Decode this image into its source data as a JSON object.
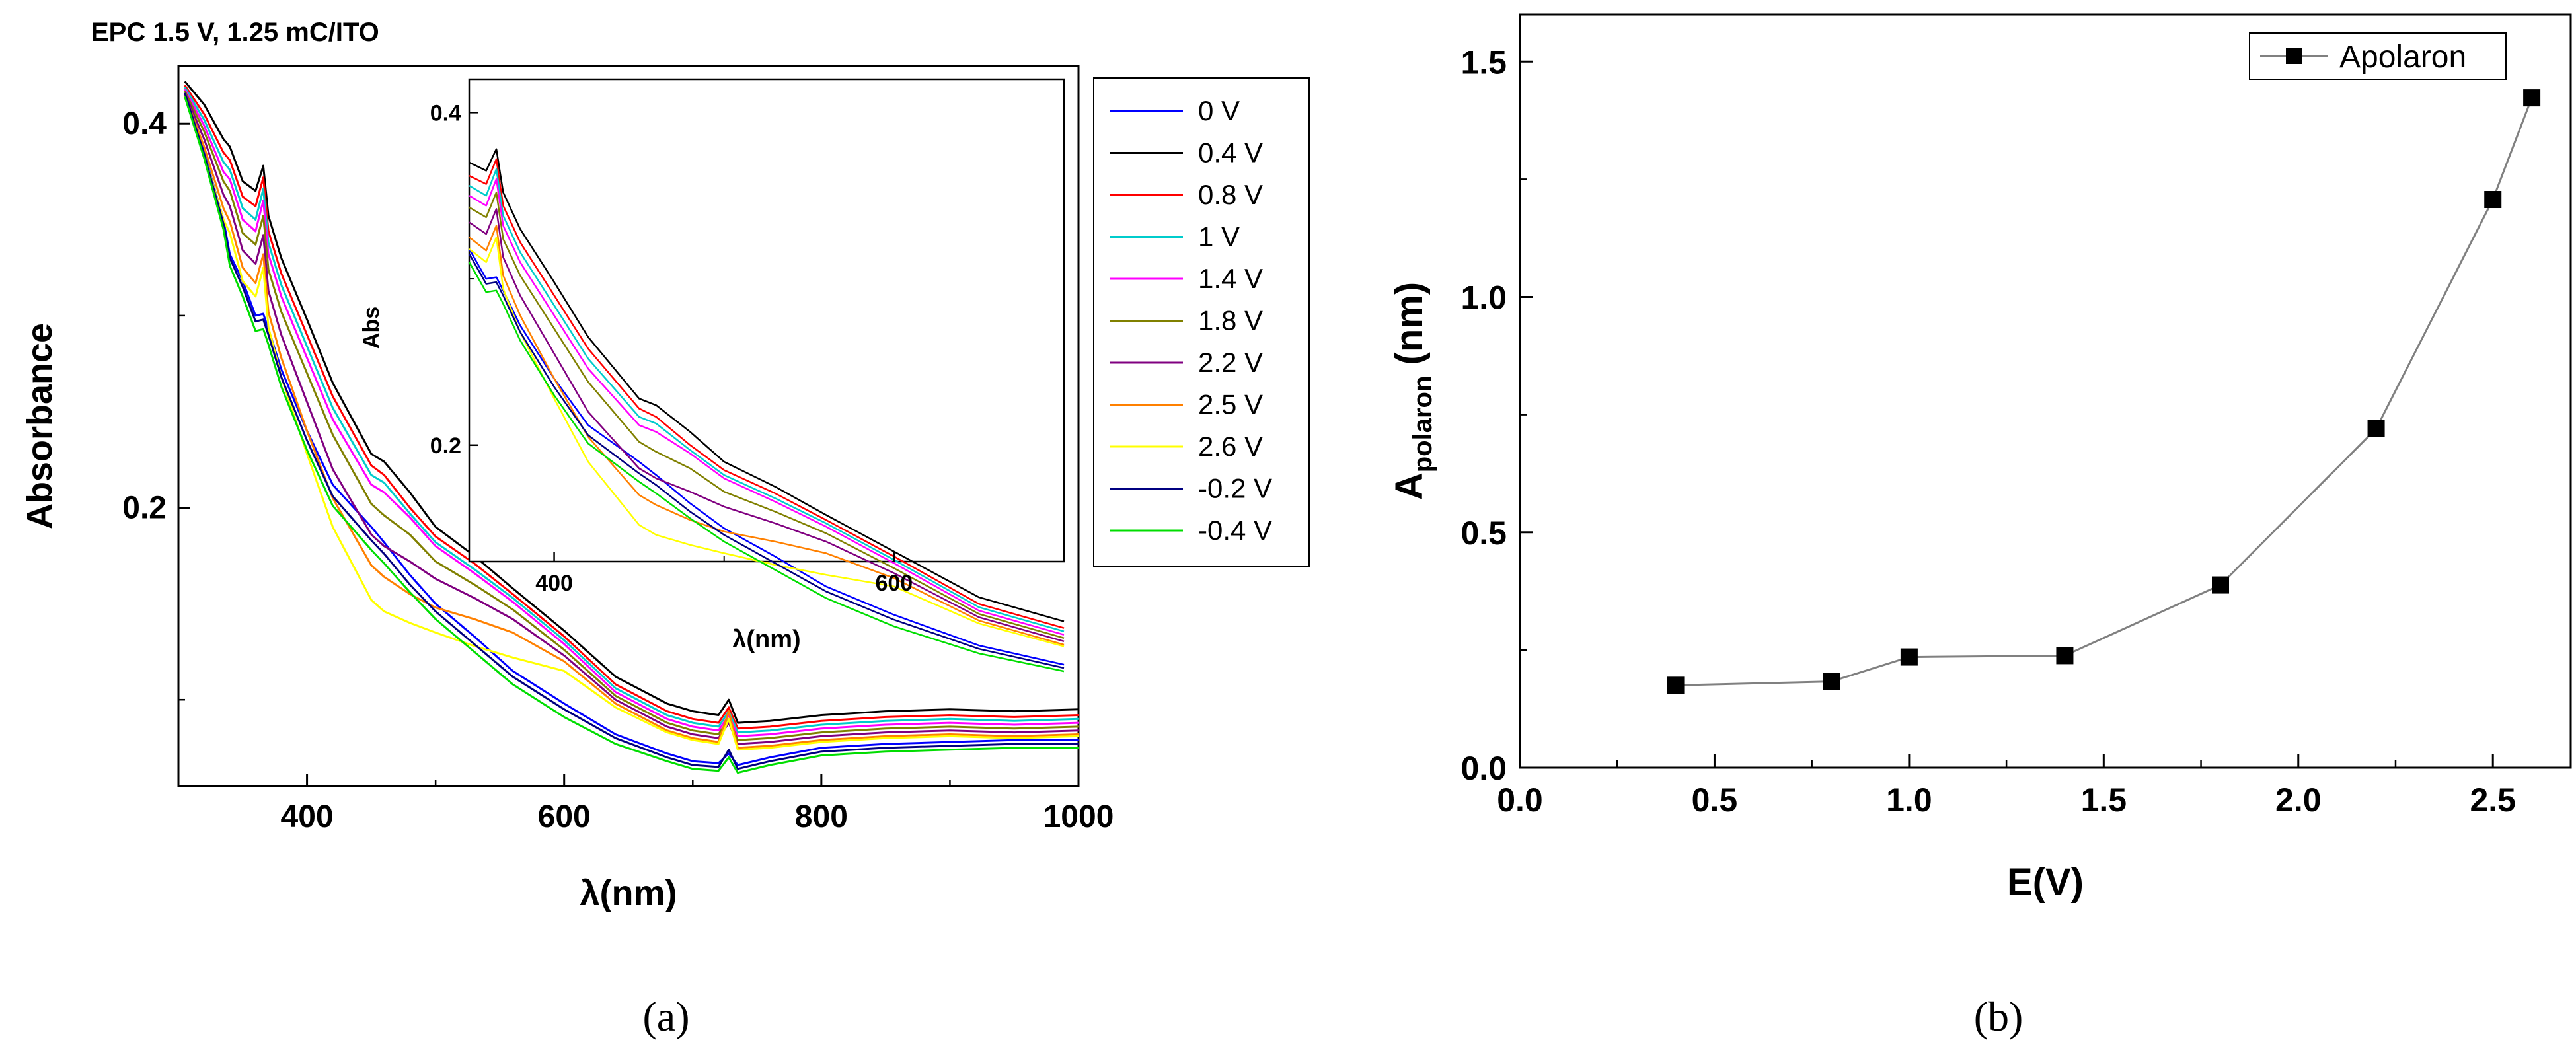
{
  "panel_a": {
    "title": "EPC 1.5 V, 1.25 mC/ITO",
    "caption": "(a)"
  },
  "panel_b": {
    "caption": "(b)"
  },
  "chart_data": [
    {
      "id": "a-main",
      "type": "line",
      "title": "EPC 1.5 V, 1.25 mC/ITO",
      "xlabel": "λ(nm)",
      "ylabel": "Absorbance",
      "xlim": [
        300,
        1000
      ],
      "ylim": [
        0.055,
        0.43
      ],
      "xticks": [
        400,
        600,
        800,
        1000
      ],
      "yticks": [
        0.2,
        0.4
      ],
      "grid": false,
      "legend": "outside-right",
      "x": [
        305,
        320,
        335,
        340,
        350,
        360,
        366,
        370,
        380,
        400,
        420,
        450,
        460,
        480,
        500,
        530,
        560,
        600,
        640,
        680,
        700,
        720,
        728,
        735,
        760,
        800,
        850,
        900,
        950,
        1000
      ],
      "series": [
        {
          "name": "0 V",
          "color": "#0000ff",
          "values": [
            0.415,
            0.385,
            0.35,
            0.332,
            0.318,
            0.3,
            0.301,
            0.293,
            0.272,
            0.24,
            0.212,
            0.19,
            0.182,
            0.165,
            0.15,
            0.133,
            0.115,
            0.098,
            0.082,
            0.072,
            0.068,
            0.067,
            0.072,
            0.066,
            0.07,
            0.075,
            0.077,
            0.078,
            0.079,
            0.079
          ]
        },
        {
          "name": "0.4 V",
          "color": "#000000",
          "values": [
            0.422,
            0.41,
            0.392,
            0.388,
            0.37,
            0.365,
            0.378,
            0.352,
            0.33,
            0.298,
            0.265,
            0.228,
            0.224,
            0.208,
            0.19,
            0.175,
            0.158,
            0.136,
            0.112,
            0.098,
            0.094,
            0.092,
            0.1,
            0.088,
            0.089,
            0.092,
            0.094,
            0.095,
            0.094,
            0.095
          ]
        },
        {
          "name": "0.8 V",
          "color": "#ff0000",
          "values": [
            0.42,
            0.405,
            0.385,
            0.381,
            0.362,
            0.357,
            0.372,
            0.344,
            0.322,
            0.29,
            0.258,
            0.222,
            0.217,
            0.2,
            0.185,
            0.171,
            0.155,
            0.133,
            0.108,
            0.094,
            0.09,
            0.088,
            0.096,
            0.085,
            0.086,
            0.089,
            0.091,
            0.092,
            0.091,
            0.092
          ]
        },
        {
          "name": "1 V",
          "color": "#00cccc",
          "values": [
            0.419,
            0.402,
            0.38,
            0.376,
            0.356,
            0.35,
            0.366,
            0.338,
            0.316,
            0.284,
            0.252,
            0.217,
            0.213,
            0.197,
            0.182,
            0.168,
            0.153,
            0.131,
            0.106,
            0.092,
            0.088,
            0.086,
            0.094,
            0.083,
            0.084,
            0.087,
            0.089,
            0.09,
            0.089,
            0.09
          ]
        },
        {
          "name": "1.4 V",
          "color": "#ff00ff",
          "values": [
            0.418,
            0.399,
            0.375,
            0.371,
            0.35,
            0.344,
            0.36,
            0.332,
            0.31,
            0.278,
            0.246,
            0.212,
            0.208,
            0.195,
            0.18,
            0.166,
            0.151,
            0.129,
            0.104,
            0.09,
            0.086,
            0.084,
            0.092,
            0.081,
            0.082,
            0.085,
            0.087,
            0.088,
            0.087,
            0.088
          ]
        },
        {
          "name": "1.8 V",
          "color": "#808000",
          "values": [
            0.417,
            0.396,
            0.37,
            0.365,
            0.343,
            0.337,
            0.352,
            0.324,
            0.302,
            0.27,
            0.238,
            0.202,
            0.196,
            0.186,
            0.172,
            0.16,
            0.147,
            0.126,
            0.102,
            0.088,
            0.084,
            0.082,
            0.09,
            0.079,
            0.08,
            0.083,
            0.085,
            0.086,
            0.085,
            0.086
          ]
        },
        {
          "name": "2.2 V",
          "color": "#800080",
          "values": [
            0.416,
            0.392,
            0.363,
            0.357,
            0.334,
            0.327,
            0.342,
            0.313,
            0.29,
            0.255,
            0.22,
            0.186,
            0.18,
            0.172,
            0.163,
            0.153,
            0.142,
            0.123,
            0.1,
            0.086,
            0.082,
            0.08,
            0.088,
            0.077,
            0.078,
            0.081,
            0.083,
            0.084,
            0.083,
            0.084
          ]
        },
        {
          "name": "2.5 V",
          "color": "#ff8000",
          "values": [
            0.415,
            0.388,
            0.356,
            0.349,
            0.325,
            0.317,
            0.332,
            0.302,
            0.278,
            0.24,
            0.205,
            0.17,
            0.164,
            0.155,
            0.148,
            0.142,
            0.135,
            0.12,
            0.098,
            0.084,
            0.08,
            0.078,
            0.094,
            0.075,
            0.076,
            0.079,
            0.081,
            0.082,
            0.081,
            0.082
          ]
        },
        {
          "name": "2.6 V",
          "color": "#ffff00",
          "values": [
            0.414,
            0.384,
            0.35,
            0.343,
            0.318,
            0.31,
            0.325,
            0.294,
            0.268,
            0.228,
            0.19,
            0.152,
            0.146,
            0.14,
            0.135,
            0.128,
            0.122,
            0.115,
            0.096,
            0.083,
            0.079,
            0.077,
            0.09,
            0.074,
            0.075,
            0.078,
            0.08,
            0.081,
            0.08,
            0.081
          ]
        },
        {
          "name": "-0.2 V",
          "color": "#000080",
          "values": [
            0.416,
            0.384,
            0.348,
            0.33,
            0.315,
            0.297,
            0.298,
            0.29,
            0.268,
            0.235,
            0.206,
            0.183,
            0.176,
            0.16,
            0.146,
            0.129,
            0.112,
            0.095,
            0.08,
            0.07,
            0.066,
            0.065,
            0.074,
            0.064,
            0.068,
            0.073,
            0.075,
            0.076,
            0.077,
            0.077
          ]
        },
        {
          "name": "-0.4 V",
          "color": "#00dd00",
          "values": [
            0.414,
            0.382,
            0.345,
            0.326,
            0.31,
            0.292,
            0.293,
            0.285,
            0.263,
            0.23,
            0.201,
            0.178,
            0.171,
            0.156,
            0.142,
            0.125,
            0.108,
            0.091,
            0.077,
            0.068,
            0.064,
            0.063,
            0.07,
            0.062,
            0.066,
            0.071,
            0.073,
            0.074,
            0.075,
            0.075
          ]
        }
      ]
    },
    {
      "id": "a-inset",
      "type": "line",
      "xlabel": "λ(nm)",
      "ylabel": "Abs",
      "xlim": [
        350,
        700
      ],
      "ylim": [
        0.13,
        0.42
      ],
      "xticks": [
        400,
        600
      ],
      "yticks": [
        0.2,
        0.4
      ],
      "grid": false,
      "x": [
        350,
        360,
        366,
        370,
        380,
        400,
        420,
        450,
        460,
        480,
        500,
        530,
        560,
        600,
        650,
        700
      ],
      "series_from": "a-main"
    },
    {
      "id": "b",
      "type": "line",
      "xlabel": "E(V)",
      "ylabel": "A",
      "ylabel_sub": "polaron",
      "ylabel_unit": " (nm)",
      "xlim": [
        0.0,
        2.7
      ],
      "ylim": [
        0.0,
        1.6
      ],
      "xticks": [
        0.0,
        0.5,
        1.0,
        1.5,
        2.0,
        2.5
      ],
      "yticks": [
        0.0,
        0.5,
        1.0,
        1.5
      ],
      "grid": false,
      "legend": "top-right",
      "series": [
        {
          "name": "Apolaron",
          "color": "#000000",
          "line_color": "#808080",
          "marker": "square",
          "x": [
            0.4,
            0.8,
            1.0,
            1.4,
            1.8,
            2.2,
            2.5,
            2.6
          ],
          "values": [
            0.175,
            0.183,
            0.235,
            0.238,
            0.388,
            0.72,
            1.207,
            1.423
          ]
        }
      ]
    }
  ]
}
